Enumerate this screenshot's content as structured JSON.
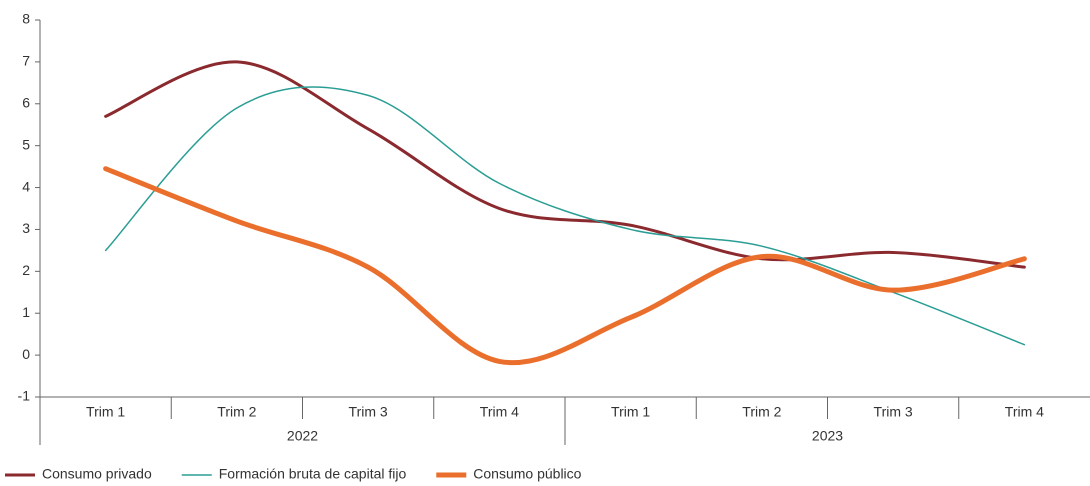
{
  "chart_data": {
    "type": "line",
    "categories": [
      "Trim 1",
      "Trim 2",
      "Trim 3",
      "Trim 4",
      "Trim 1",
      "Trim 2",
      "Trim 3",
      "Trim 4"
    ],
    "category_groups": [
      "2022",
      "2023"
    ],
    "series": [
      {
        "name": "Consumo privado",
        "color": "#8b2a2e",
        "width": 3,
        "values": [
          5.7,
          7.0,
          5.4,
          3.5,
          3.1,
          2.3,
          2.45,
          2.1
        ]
      },
      {
        "name": "Formación bruta de capital fijo",
        "color": "#2a9d94",
        "width": 1.5,
        "values": [
          2.5,
          5.9,
          6.2,
          4.1,
          3.0,
          2.6,
          1.5,
          0.25
        ]
      },
      {
        "name": "Consumo público",
        "color": "#ea6f2d",
        "width": 5,
        "values": [
          4.45,
          3.2,
          2.1,
          -0.15,
          0.9,
          2.35,
          1.55,
          2.3
        ]
      }
    ],
    "ylim": [
      -1,
      8
    ],
    "yticks": [
      -1,
      0,
      1,
      2,
      3,
      4,
      5,
      6,
      7,
      8
    ],
    "legend": "bottom-left"
  }
}
